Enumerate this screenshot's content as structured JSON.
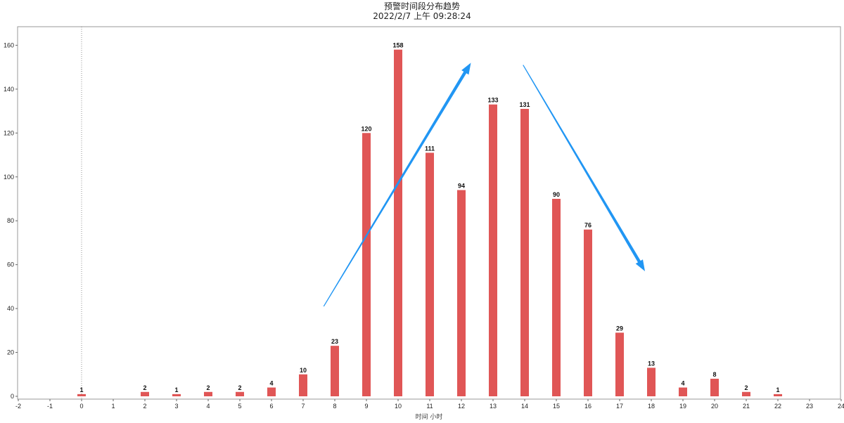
{
  "chart_data": {
    "type": "bar",
    "title": "预警时间段分布趋势",
    "subtitle": "2022/2/7 上午 09:28:24",
    "xlabel": "时间 小时",
    "ylabel": "",
    "x_ticks": [
      -2,
      -1,
      0,
      1,
      2,
      3,
      4,
      5,
      6,
      7,
      8,
      9,
      10,
      11,
      12,
      13,
      14,
      15,
      16,
      17,
      18,
      19,
      20,
      21,
      22,
      23,
      24
    ],
    "y_ticks": [
      0,
      20,
      40,
      60,
      80,
      100,
      120,
      140,
      160
    ],
    "xlim": [
      -2,
      24
    ],
    "ylim": [
      0,
      170
    ],
    "categories": [
      0,
      2,
      3,
      4,
      5,
      6,
      7,
      8,
      9,
      10,
      11,
      12,
      13,
      14,
      15,
      16,
      17,
      18,
      19,
      20,
      21,
      22
    ],
    "values": [
      1,
      2,
      1,
      2,
      2,
      4,
      10,
      23,
      120,
      158,
      111,
      94,
      133,
      131,
      90,
      76,
      29,
      13,
      4,
      8,
      2,
      1
    ],
    "bar_color": "#e05656",
    "arrow_color": "#2196f3",
    "reference_line_x": 0,
    "grid": false,
    "annotations": [
      {
        "type": "arrow",
        "from": [
          7.65,
          41
        ],
        "to": [
          12.3,
          152
        ]
      },
      {
        "type": "arrow",
        "from": [
          13.95,
          151
        ],
        "to": [
          17.8,
          57
        ]
      }
    ]
  }
}
